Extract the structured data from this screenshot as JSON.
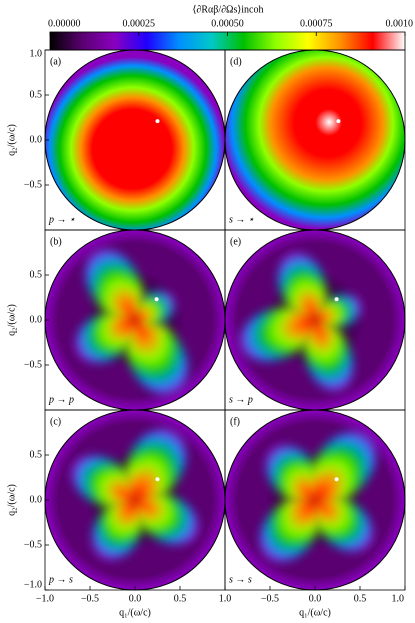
{
  "chart_data": {
    "type": "disk-maps",
    "title": "⟨∂Rαβ/∂Ωs⟩incoh",
    "clim": [
      0,
      0.001
    ],
    "cticks": [
      {
        "value": 0,
        "label": "0.00000"
      },
      0.00025,
      {
        "value": 0.0005,
        "label": "0.00050"
      },
      0.00075,
      {
        "value": 0.001,
        "label": "0.0010"
      }
    ],
    "colormap": [
      "#000000",
      "#5a0070",
      "#8a00c0",
      "#2000ff",
      "#0090ff",
      "#00c8c8",
      "#00c000",
      "#90ff00",
      "#ffff00",
      "#ff9000",
      "#ff0000",
      "#ffffff"
    ],
    "xlabel": "q₁/(ω/c)",
    "ylabel": "q₂/(ω/c)",
    "xlim": [
      -1,
      1
    ],
    "ylim": [
      -1,
      1
    ],
    "xticks": [
      {
        "value": -1,
        "label": "−1.0"
      },
      {
        "value": -0.5,
        "label": "−0.5"
      },
      {
        "value": 0,
        "label": "0.0"
      },
      0.5,
      {
        "value": 1,
        "label": "1.0"
      }
    ],
    "yticks": [
      {
        "value": -1,
        "label": "−1.0"
      },
      {
        "value": -0.5,
        "label": "−0.5"
      },
      {
        "value": 0,
        "label": "0.0"
      },
      0.5,
      {
        "value": 1,
        "label": "1.0"
      }
    ],
    "panels": [
      {
        "label": "(a)",
        "channel": "p → ⋆",
        "marker": {
          "x": 0.25,
          "y": 0.21
        }
      },
      {
        "label": "(d)",
        "channel": "s → ⋆",
        "marker": {
          "x": 0.26,
          "y": 0.21
        }
      },
      {
        "label": "(b)",
        "channel": "p → p",
        "marker": {
          "x": 0.24,
          "y": 0.23
        }
      },
      {
        "label": "(e)",
        "channel": "s → p",
        "marker": {
          "x": 0.24,
          "y": 0.23
        }
      },
      {
        "label": "(c)",
        "channel": "p → s",
        "marker": {
          "x": 0.25,
          "y": 0.23
        }
      },
      {
        "label": "(f)",
        "channel": "s → s",
        "marker": {
          "x": 0.24,
          "y": 0.23
        }
      }
    ]
  }
}
